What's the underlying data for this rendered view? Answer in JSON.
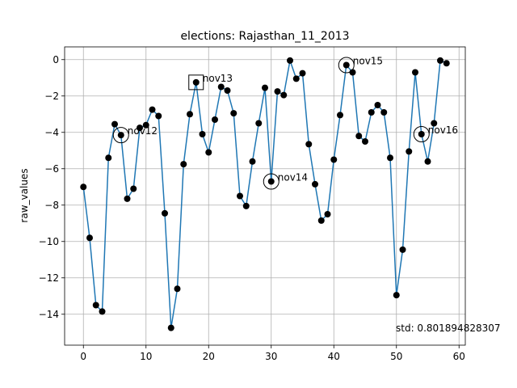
{
  "chart_data": {
    "type": "line",
    "title": "elections: Rajasthan_11_2013",
    "xlabel": "",
    "ylabel": "raw_values",
    "xlim": [
      -3,
      61
    ],
    "ylim": [
      -15.7,
      0.7
    ],
    "xticks": [
      0,
      10,
      20,
      30,
      40,
      50,
      60
    ],
    "yticks": [
      0,
      -2,
      -4,
      -6,
      -8,
      -10,
      -12,
      -14
    ],
    "grid": true,
    "series": [
      {
        "color": "#1f77b4",
        "marker_color": "#000000",
        "x": [
          0,
          1,
          2,
          3,
          4,
          5,
          6,
          7,
          8,
          9,
          10,
          11,
          12,
          13,
          14,
          15,
          16,
          17,
          18,
          19,
          20,
          21,
          22,
          23,
          24,
          25,
          26,
          27,
          28,
          29,
          30,
          31,
          32,
          33,
          34,
          35,
          36,
          37,
          38,
          39,
          40,
          41,
          42,
          43,
          44,
          45,
          46,
          47,
          48,
          49,
          50,
          51,
          52,
          53,
          54,
          55,
          56,
          57,
          58
        ],
        "y": [
          -7.0,
          -9.8,
          -13.5,
          -13.85,
          -5.4,
          -3.55,
          -4.15,
          -7.65,
          -7.1,
          -3.75,
          -3.6,
          -2.75,
          -3.1,
          -8.45,
          -14.75,
          -12.6,
          -5.75,
          -3.0,
          -1.25,
          -4.1,
          -5.1,
          -3.3,
          -1.5,
          -1.7,
          -2.95,
          -7.5,
          -8.05,
          -5.6,
          -3.5,
          -1.55,
          -6.7,
          -1.75,
          -1.95,
          -0.05,
          -1.05,
          -0.75,
          -4.65,
          -6.85,
          -8.85,
          -8.5,
          -5.5,
          -3.05,
          -0.3,
          -0.7,
          -4.2,
          -4.5,
          -2.9,
          -2.5,
          -2.9,
          -5.4,
          -12.95,
          -10.45,
          -5.05,
          -0.7,
          -4.1,
          -5.6,
          -3.5,
          -0.05,
          -0.2
        ]
      }
    ],
    "annotations": [
      {
        "label": "nov12",
        "x": 6,
        "y": -4.15,
        "marker": "circle"
      },
      {
        "label": "nov13",
        "x": 18,
        "y": -1.25,
        "marker": "square"
      },
      {
        "label": "nov14",
        "x": 30,
        "y": -6.7,
        "marker": "circle"
      },
      {
        "label": "nov15",
        "x": 42,
        "y": -0.3,
        "marker": "circle"
      },
      {
        "label": "nov16",
        "x": 54,
        "y": -4.1,
        "marker": "circle"
      }
    ],
    "std_text": "std: 0.801894828307"
  }
}
